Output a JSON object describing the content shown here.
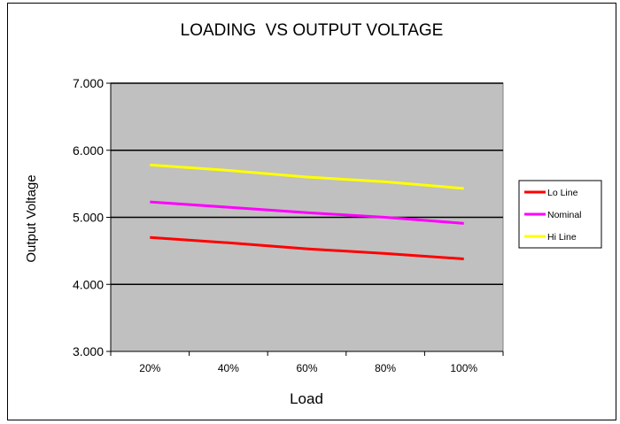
{
  "chart_data": {
    "type": "line",
    "title": "LOADING  VS OUTPUT VOLTAGE",
    "xlabel": "Load",
    "ylabel": "Output Voltage",
    "categories": [
      "20%",
      "40%",
      "60%",
      "80%",
      "100%"
    ],
    "ylim": [
      3.0,
      7.0
    ],
    "yticks": [
      "3.000",
      "4.000",
      "5.000",
      "6.000",
      "7.000"
    ],
    "grid": true,
    "legend_position": "right",
    "plot_background": "#c0c0c0",
    "series": [
      {
        "name": "Lo Line",
        "color": "#ff0000",
        "values": [
          4.7,
          4.62,
          4.53,
          4.46,
          4.38
        ]
      },
      {
        "name": "Nominal",
        "color": "#ff00ff",
        "values": [
          5.23,
          5.15,
          5.07,
          5.0,
          4.91
        ]
      },
      {
        "name": "Hi Line",
        "color": "#ffff00",
        "values": [
          5.78,
          5.7,
          5.6,
          5.53,
          5.43
        ]
      }
    ]
  }
}
